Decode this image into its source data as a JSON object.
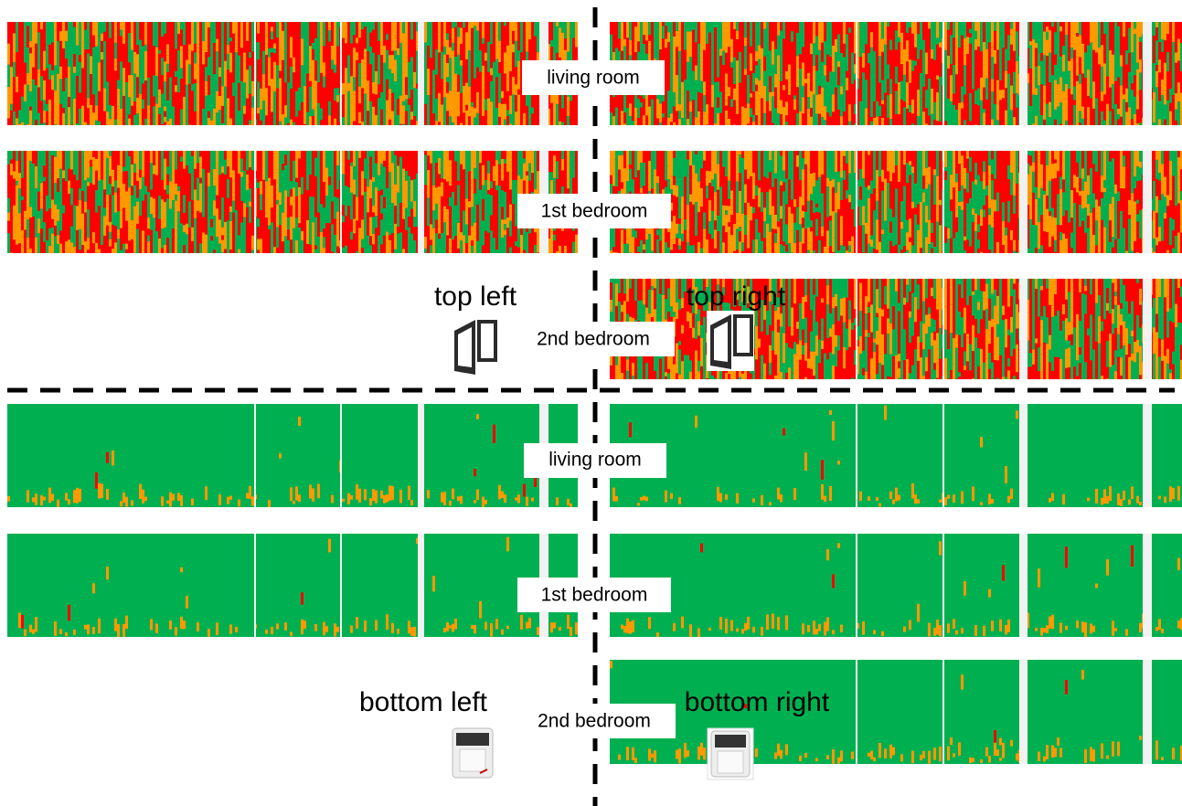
{
  "top": {
    "rooms": [
      "living room",
      "1st bedroom",
      "2nd bedroom"
    ],
    "left_label": "top left",
    "right_label": "top right"
  },
  "bottom": {
    "rooms": [
      "living room",
      "1st bedroom",
      "2nd bedroom"
    ],
    "left_label": "bottom left",
    "right_label": "bottom right"
  }
}
